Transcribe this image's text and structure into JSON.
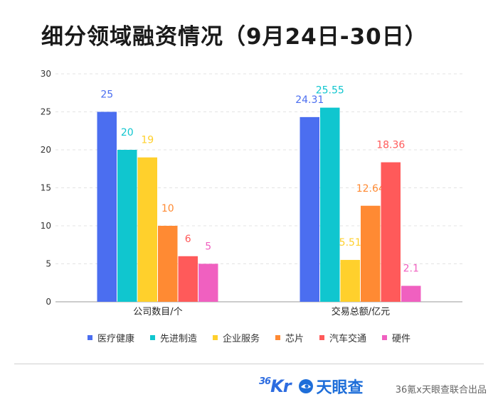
{
  "header": {
    "title": "细分领域融资情况（9月24日-30日）"
  },
  "chart_data": {
    "type": "bar",
    "title": "细分领域融资情况（9月24日-30日）",
    "categories": [
      "公司数目/个",
      "交易总额/亿元"
    ],
    "series": [
      {
        "name": "医疗健康",
        "color": "#4b6ef0",
        "values": [
          25,
          24.31
        ],
        "labels": [
          "25",
          "24.31"
        ]
      },
      {
        "name": "先进制造",
        "color": "#10c6cf",
        "values": [
          20,
          25.55
        ],
        "labels": [
          "20",
          "25.55"
        ]
      },
      {
        "name": "企业服务",
        "color": "#ffd02c",
        "values": [
          19,
          5.51
        ],
        "labels": [
          "19",
          "5.51"
        ]
      },
      {
        "name": "芯片",
        "color": "#ff8a33",
        "values": [
          10,
          12.64
        ],
        "labels": [
          "10",
          "12.64"
        ]
      },
      {
        "name": "汽车交通",
        "color": "#ff5a5a",
        "values": [
          6,
          18.36
        ],
        "labels": [
          "6",
          "18.36"
        ]
      },
      {
        "name": "硬件",
        "color": "#f060c0",
        "values": [
          5,
          2.1
        ],
        "labels": [
          "5",
          "2.1"
        ]
      }
    ],
    "yticks": [
      "0",
      "5",
      "10",
      "15",
      "20",
      "25",
      "30"
    ],
    "ylim": [
      0,
      30
    ],
    "grid": true,
    "legend_position": "bottom"
  },
  "footer": {
    "logo_36kr_sup": "36",
    "logo_36kr_text": "Kr",
    "logo_tyc": "天眼查",
    "credit": "36氪x天眼查联合出品"
  }
}
